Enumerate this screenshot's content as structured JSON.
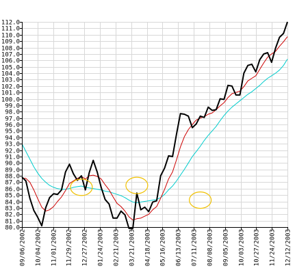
{
  "chart_data": {
    "type": "line",
    "title": "",
    "xlabel": "",
    "ylabel": "",
    "ylim": [
      80,
      112
    ],
    "y_ticks": [
      "80.0",
      "81.0",
      "82.0",
      "83.0",
      "84.0",
      "85.0",
      "86.0",
      "87.0",
      "88.0",
      "89.0",
      "90.0",
      "91.0",
      "92.0",
      "93.0",
      "94.0",
      "95.0",
      "96.0",
      "97.0",
      "98.0",
      "99.0",
      "100.0",
      "101.0",
      "102.0",
      "103.0",
      "104.0",
      "105.0",
      "106.0",
      "107.0",
      "108.0",
      "109.0",
      "110.0",
      "111.0",
      "112.0"
    ],
    "x_ticks": [
      "09/06/2002",
      "10/04/2002",
      "11/01/2002",
      "11/29/2002",
      "12/27/2002",
      "01/24/2003",
      "02/21/2003",
      "03/21/2003",
      "04/18/2003",
      "05/16/2003",
      "06/13/2003",
      "07/11/2003",
      "08/08/2003",
      "09/05/2003",
      "10/03/2003",
      "10/27/2003",
      "11/24/2003",
      "12/12/2003"
    ],
    "grid": true,
    "legend": "none",
    "series": [
      {
        "color": "#000000",
        "values": [
          87.8,
          87.2,
          84.5,
          82.6,
          81.5,
          80.2,
          83.0,
          84.6,
          85.2,
          85.1,
          85.8,
          88.6,
          89.8,
          88.3,
          87.3,
          88.0,
          85.8,
          88.5,
          90.4,
          88.6,
          86.2,
          84.3,
          83.6,
          81.4,
          81.4,
          82.5,
          81.9,
          79.8,
          79.8,
          85.3,
          82.7,
          83.1,
          82.4,
          83.9,
          84.1,
          88.0,
          89.2,
          91.1,
          91.0,
          94.5,
          97.7,
          97.6,
          97.3,
          95.5,
          96.1,
          97.3,
          97.1,
          98.7,
          98.2,
          98.3,
          100.0,
          99.9,
          102.1,
          102.0,
          100.6,
          100.6,
          104.0,
          105.2,
          105.4,
          104.2,
          106.1,
          107.0,
          107.2,
          105.7,
          107.9,
          109.6,
          110.2,
          112.0
        ]
      },
      {
        "color": "#cc0000",
        "values": [
          87.6,
          87.6,
          87.0,
          85.8,
          84.4,
          83.1,
          82.5,
          82.7,
          83.2,
          84.0,
          84.7,
          85.7,
          86.8,
          87.2,
          87.6,
          87.9,
          87.5,
          88.0,
          88.1,
          87.9,
          87.5,
          86.6,
          85.8,
          84.7,
          83.7,
          83.2,
          82.5,
          81.6,
          81.1,
          81.3,
          81.4,
          81.7,
          82.0,
          82.7,
          83.2,
          84.5,
          85.9,
          87.5,
          88.6,
          90.5,
          92.5,
          94.1,
          95.2,
          96.0,
          96.7,
          97.0,
          97.2,
          97.6,
          97.8,
          98.3,
          98.9,
          99.4,
          100.2,
          100.8,
          101.0,
          101.2,
          101.9,
          102.8,
          103.2,
          103.6,
          104.6,
          105.6,
          106.5,
          107.0,
          107.4,
          108.2,
          108.9,
          109.7
        ]
      },
      {
        "color": "#00cccc",
        "values": [
          93.0,
          91.8,
          90.6,
          89.4,
          88.4,
          87.6,
          87.0,
          86.5,
          86.2,
          86.0,
          85.9,
          85.9,
          86.0,
          86.2,
          86.3,
          86.4,
          86.2,
          86.1,
          86.0,
          85.9,
          85.8,
          85.6,
          85.5,
          85.3,
          85.1,
          84.9,
          84.6,
          84.2,
          83.9,
          83.8,
          83.9,
          84.0,
          84.1,
          84.2,
          84.3,
          84.6,
          85.1,
          85.8,
          86.4,
          87.2,
          88.1,
          89.0,
          90.0,
          91.0,
          91.8,
          92.6,
          93.5,
          94.3,
          95.0,
          95.7,
          96.6,
          97.4,
          98.1,
          98.7,
          99.2,
          99.7,
          100.2,
          100.7,
          101.1,
          101.6,
          102.1,
          102.7,
          103.2,
          103.6,
          104.0,
          104.5,
          105.2,
          106.2
        ]
      }
    ],
    "annotations": [
      {
        "shape": "ellipse",
        "color": "#f0c000",
        "cx_index": 15,
        "cy_value": 86.2
      },
      {
        "shape": "ellipse",
        "color": "#f0c000",
        "cx_index": 29,
        "cy_value": 86.5
      },
      {
        "shape": "ellipse",
        "color": "#f0c000",
        "cx_index": 45,
        "cy_value": 84.2
      }
    ]
  }
}
